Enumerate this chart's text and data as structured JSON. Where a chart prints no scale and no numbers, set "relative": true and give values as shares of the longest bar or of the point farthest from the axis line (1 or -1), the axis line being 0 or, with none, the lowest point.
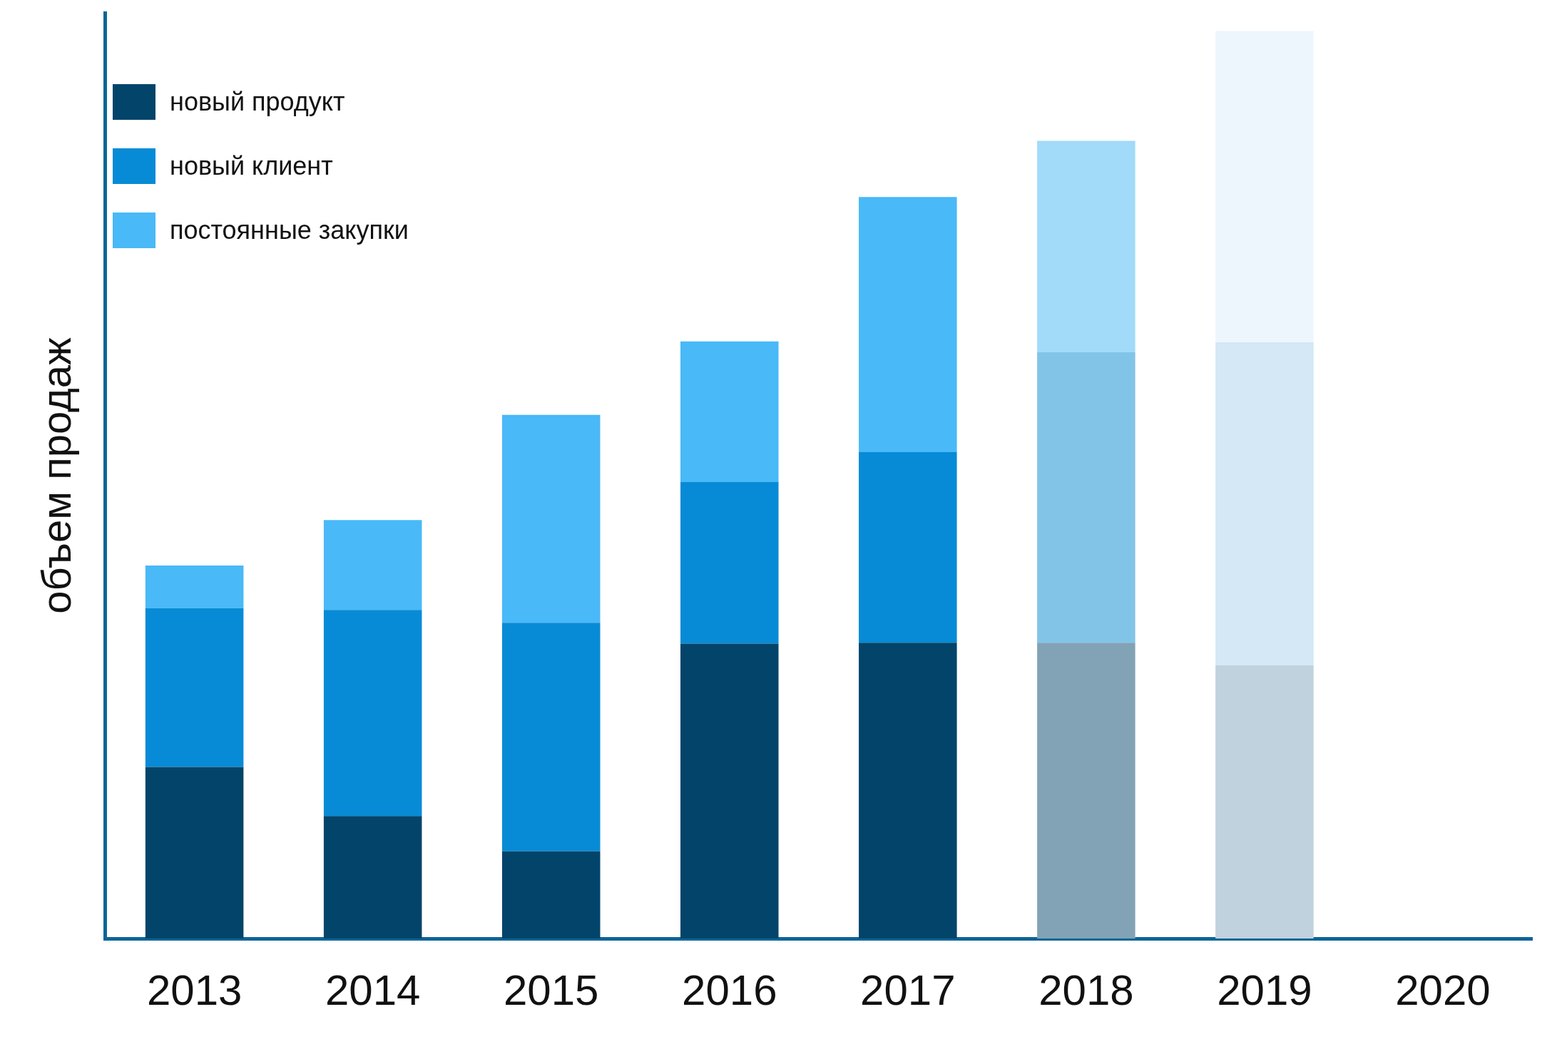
{
  "chart_data": {
    "type": "bar",
    "stacked": true,
    "relative": true,
    "ylabel": "объем продаж",
    "legend": "top left",
    "grid": false,
    "categories": [
      "2013",
      "2014",
      "2015",
      "2016",
      "2017",
      "2018",
      "2019",
      "2020"
    ],
    "series": [
      {
        "name": "новый продукт",
        "color": "#03446a",
        "colors": [
          "#03446a",
          "#03446a",
          "#03446a",
          "#03446a",
          "#03446a",
          "#82a3b5",
          "#c0d2de",
          "#03446a"
        ],
        "values": [
          0.189,
          0.135,
          0.096,
          0.325,
          0.326,
          0.326,
          0.301,
          null
        ]
      },
      {
        "name": "новый клиент",
        "color": "#078bd6",
        "colors": [
          "#078bd6",
          "#078bd6",
          "#078bd6",
          "#078bd6",
          "#078bd6",
          "#82c4e8",
          "#d4e8f5",
          "#078bd6"
        ],
        "values": [
          0.175,
          0.227,
          0.252,
          0.178,
          0.21,
          0.32,
          0.356,
          null
        ]
      },
      {
        "name": "постоянные закупки",
        "color": "#49b9f7",
        "colors": [
          "#49b9f7",
          "#49b9f7",
          "#49b9f7",
          "#49b9f7",
          "#49b9f7",
          "#a2daf9",
          "#eef6fd",
          "#49b9f7"
        ],
        "values": [
          0.047,
          0.099,
          0.229,
          0.155,
          0.281,
          0.233,
          0.343,
          null
        ]
      }
    ]
  }
}
